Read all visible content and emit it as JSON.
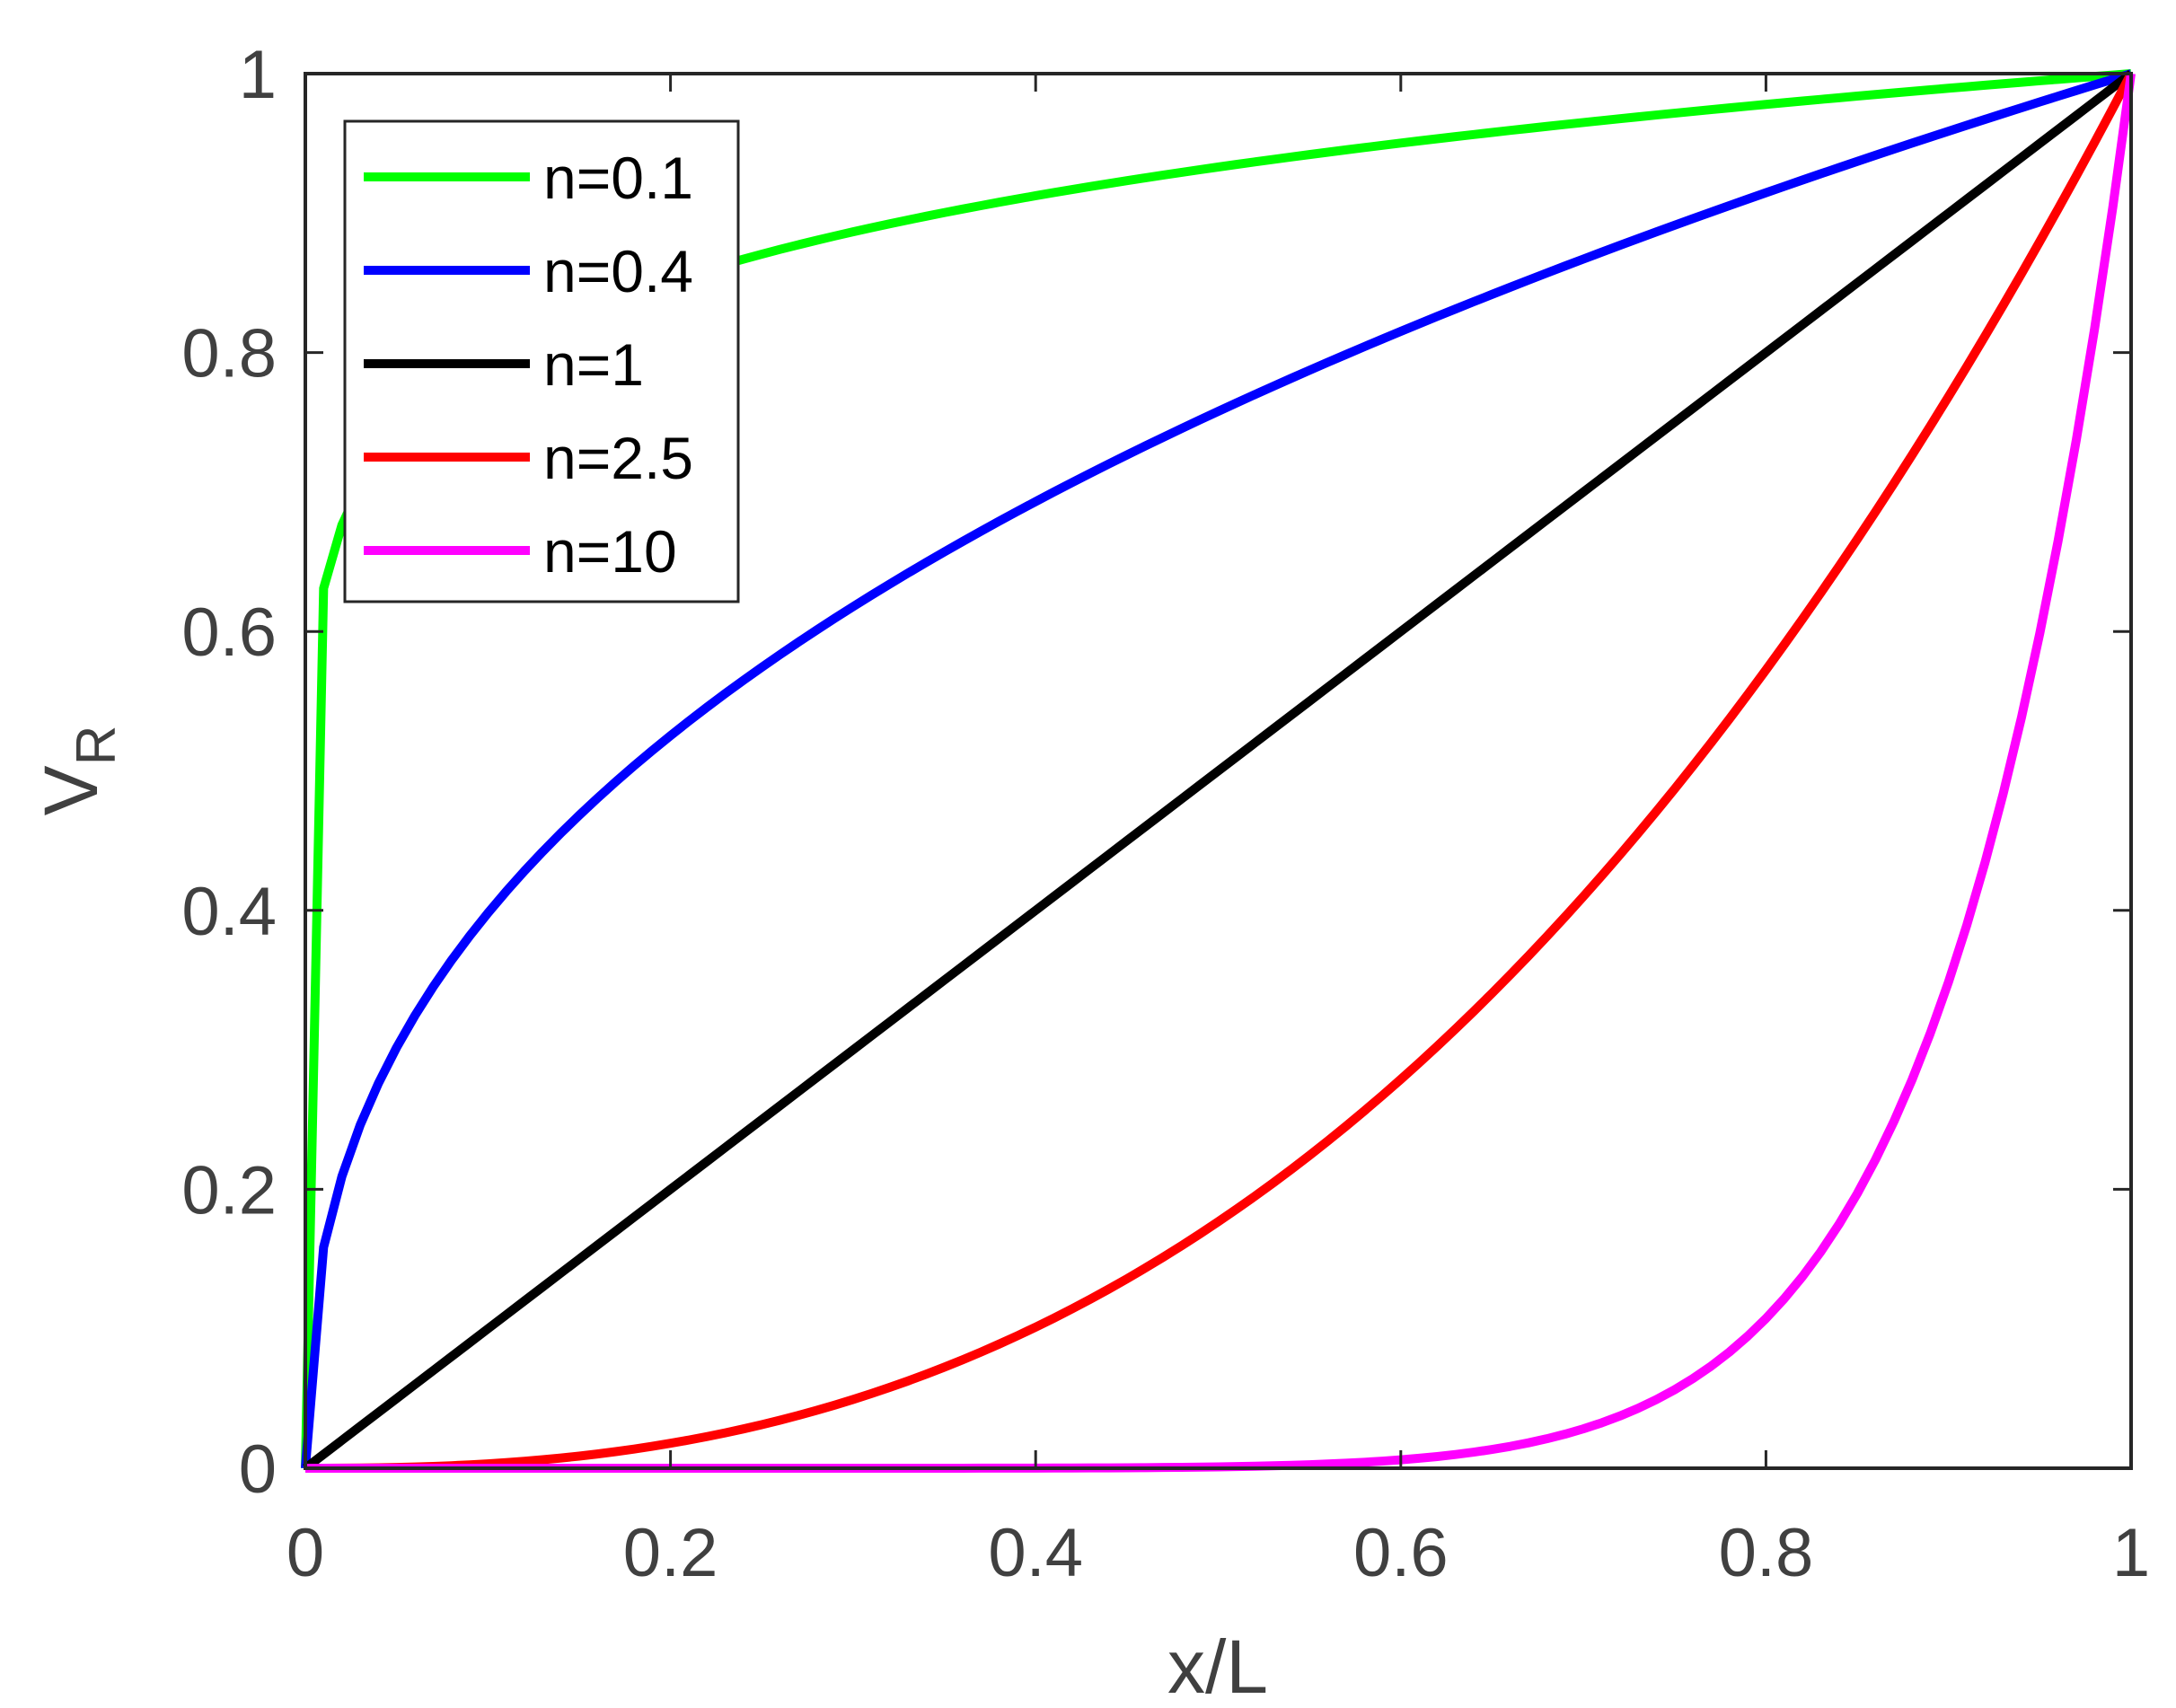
{
  "chart_data": {
    "type": "line",
    "title": "",
    "xlabel": "x/L",
    "ylabel_main": "V",
    "ylabel_sub": "R",
    "xlim": [
      0,
      1
    ],
    "ylim": [
      0,
      1
    ],
    "xticks": [
      "0",
      "0.2",
      "0.4",
      "0.6",
      "0.8",
      "1"
    ],
    "yticks": [
      "0",
      "0.2",
      "0.4",
      "0.6",
      "0.8",
      "1"
    ],
    "grid": false,
    "legend_position": "top-left",
    "series": [
      {
        "name": "n=0.1",
        "exponent": 0.1,
        "color": "#00ff00"
      },
      {
        "name": "n=0.4",
        "exponent": 0.4,
        "color": "#0000ff"
      },
      {
        "name": "n=1",
        "exponent": 1,
        "color": "#000000"
      },
      {
        "name": "n=2.5",
        "exponent": 2.5,
        "color": "#ff0000"
      },
      {
        "name": "n=10",
        "exponent": 10,
        "color": "#ff00ff"
      }
    ]
  }
}
